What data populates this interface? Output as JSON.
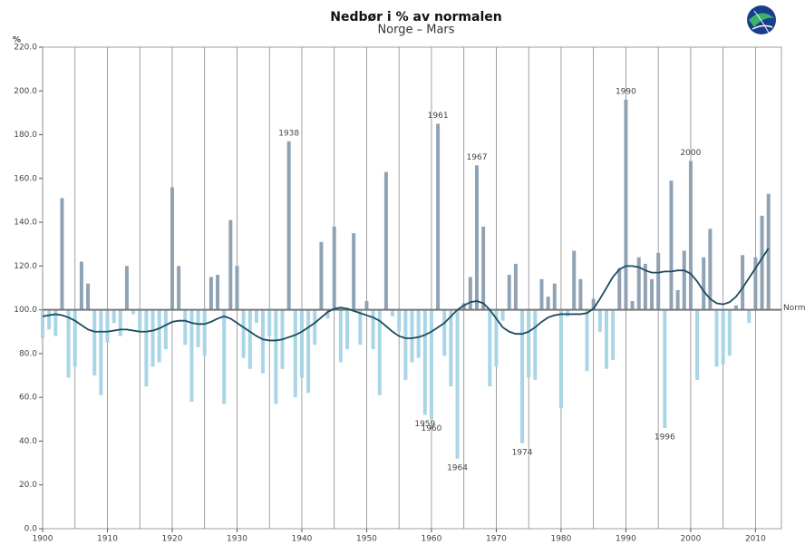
{
  "chart_data": {
    "type": "deviation-bar",
    "title": "Nedbør i % av normalen",
    "subtitle": "Norge – Mars",
    "ylabel": "%",
    "baseline": 100,
    "baseline_label": "Norm",
    "xlim": [
      1900,
      2014
    ],
    "xticks": [
      1900,
      1910,
      1920,
      1930,
      1940,
      1950,
      1960,
      1970,
      1980,
      1990,
      2000,
      2010
    ],
    "xgridlines": [
      1900,
      1905,
      1910,
      1915,
      1920,
      1925,
      1930,
      1935,
      1940,
      1945,
      1950,
      1955,
      1960,
      1965,
      1970,
      1975,
      1980,
      1985,
      1990,
      1995,
      2000,
      2005,
      2010
    ],
    "ylim": [
      0,
      220
    ],
    "yticks": [
      {
        "value": 0,
        "label": "0.0"
      },
      {
        "value": 20,
        "label": "20.0"
      },
      {
        "value": 40,
        "label": "40.0"
      },
      {
        "value": 60,
        "label": "60.0"
      },
      {
        "value": 80,
        "label": "80.0"
      },
      {
        "value": 100,
        "label": "100.0"
      },
      {
        "value": 120,
        "label": "120.0"
      },
      {
        "value": 140,
        "label": "140.0"
      },
      {
        "value": 160,
        "label": "160.0"
      },
      {
        "value": 180,
        "label": "180.0"
      },
      {
        "value": 200,
        "label": "200.0"
      },
      {
        "value": 220,
        "label": "220.0"
      }
    ],
    "x": [
      1900,
      1901,
      1902,
      1903,
      1904,
      1905,
      1906,
      1907,
      1908,
      1909,
      1910,
      1911,
      1912,
      1913,
      1914,
      1915,
      1916,
      1917,
      1918,
      1919,
      1920,
      1921,
      1922,
      1923,
      1924,
      1925,
      1926,
      1927,
      1928,
      1929,
      1930,
      1931,
      1932,
      1933,
      1934,
      1935,
      1936,
      1937,
      1938,
      1939,
      1940,
      1941,
      1942,
      1943,
      1944,
      1945,
      1946,
      1947,
      1948,
      1949,
      1950,
      1951,
      1952,
      1953,
      1954,
      1955,
      1956,
      1957,
      1958,
      1959,
      1960,
      1961,
      1962,
      1963,
      1964,
      1965,
      1966,
      1967,
      1968,
      1969,
      1970,
      1971,
      1972,
      1973,
      1974,
      1975,
      1976,
      1977,
      1978,
      1979,
      1980,
      1981,
      1982,
      1983,
      1984,
      1985,
      1986,
      1987,
      1988,
      1989,
      1990,
      1991,
      1992,
      1993,
      1994,
      1995,
      1996,
      1997,
      1998,
      1999,
      2000,
      2001,
      2002,
      2003,
      2004,
      2005,
      2006,
      2007,
      2008,
      2009,
      2010,
      2011,
      2012
    ],
    "series": [
      {
        "type": "bar",
        "color_above": "#8fa3b5",
        "color_below": "#a9d5e6",
        "values": [
          87,
          91,
          88,
          151,
          69,
          74,
          122,
          112,
          70,
          61,
          85,
          94,
          88,
          120,
          98,
          90,
          65,
          74,
          76,
          82,
          156,
          120,
          84,
          58,
          83,
          79,
          115,
          116,
          57,
          141,
          120,
          78,
          73,
          94,
          71,
          88,
          57,
          73,
          177,
          60,
          69,
          62,
          84,
          131,
          96,
          138,
          76,
          82,
          135,
          84,
          104,
          82,
          61,
          163,
          97,
          90,
          68,
          76,
          78,
          52,
          50,
          185,
          79,
          65,
          32,
          103,
          115,
          166,
          138,
          65,
          74,
          95,
          116,
          121,
          39,
          69,
          68,
          114,
          106,
          112,
          55,
          97,
          127,
          114,
          72,
          105,
          90,
          73,
          77,
          119,
          196,
          104,
          124,
          121,
          114,
          126,
          46,
          159,
          109,
          127,
          168,
          68,
          124,
          137,
          74,
          75,
          79,
          102,
          125,
          94,
          124,
          143,
          153
        ]
      },
      {
        "type": "line",
        "color": "#1d4b5e",
        "values": [
          97,
          97.5,
          98,
          97.5,
          96.5,
          95,
          93,
          91,
          90,
          90,
          90,
          90.5,
          91,
          91,
          90.5,
          90,
          90,
          90.5,
          91.5,
          93,
          94.5,
          95,
          95,
          94,
          93.5,
          93.5,
          94.5,
          96,
          97,
          96,
          94,
          92,
          90,
          88,
          86.5,
          86,
          86,
          86.5,
          87.5,
          88.5,
          90,
          92,
          94,
          96.5,
          99,
          100.5,
          101,
          100.5,
          99.5,
          98.5,
          97.5,
          96.5,
          95,
          92.5,
          90,
          88,
          87,
          87,
          87.5,
          88.5,
          90,
          92,
          94,
          97,
          100,
          102,
          103.5,
          104,
          103,
          100,
          96,
          92,
          90,
          89,
          89,
          90,
          92,
          94.5,
          96.5,
          97.5,
          98,
          98,
          98,
          98,
          98.5,
          100.5,
          105,
          110,
          115,
          118.5,
          120,
          120,
          119.5,
          118,
          117,
          117,
          117.5,
          117.5,
          118,
          118,
          116.5,
          113,
          108.5,
          105,
          103,
          102.5,
          103.5,
          106,
          110,
          114.5,
          119,
          123.5,
          128
        ]
      }
    ],
    "annotations": [
      {
        "label": "1938",
        "x": 1938
      },
      {
        "label": "1961",
        "x": 1961
      },
      {
        "label": "1967",
        "x": 1967
      },
      {
        "label": "1990",
        "x": 1990
      },
      {
        "label": "2000",
        "x": 2000
      },
      {
        "label": "1959",
        "x": 1959
      },
      {
        "label": "1960",
        "x": 1960
      },
      {
        "label": "1964",
        "x": 1964
      },
      {
        "label": "1974",
        "x": 1974
      },
      {
        "label": "1996",
        "x": 1996
      }
    ]
  }
}
